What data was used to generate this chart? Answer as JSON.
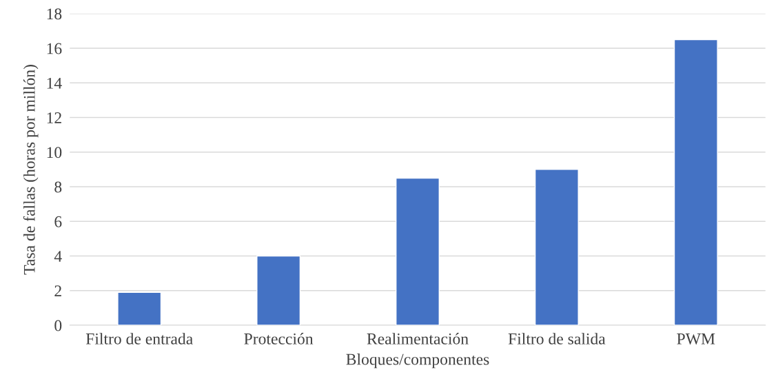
{
  "chart_data": {
    "type": "bar",
    "xlabel": "Bloques/componentes",
    "ylabel": "Tasa de fallas (horas por millón)",
    "categories": [
      "Filtro de entrada",
      "Protección",
      "Realimentación",
      "Filtro de salida",
      "PWM"
    ],
    "values": [
      1.9,
      4.0,
      8.5,
      9.0,
      16.5
    ],
    "color": "#4472c4",
    "ylim": [
      0,
      18
    ],
    "yticks": [
      0,
      2,
      4,
      6,
      8,
      10,
      12,
      14,
      16,
      18
    ],
    "grid": "y"
  }
}
